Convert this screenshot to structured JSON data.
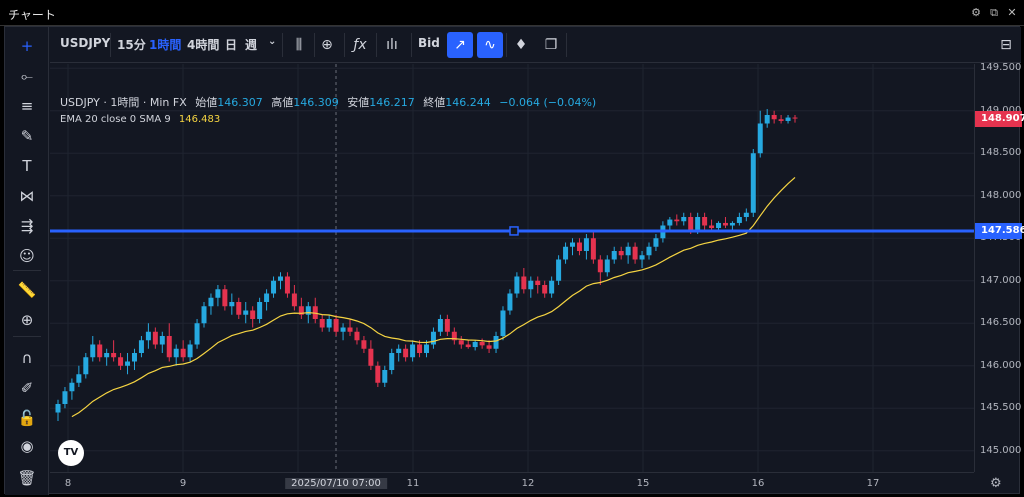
{
  "window": {
    "title": "チャート",
    "icons": [
      "gear-icon",
      "popout-icon",
      "close-icon"
    ]
  },
  "toolbar": {
    "symbol": "USDJPY",
    "timeframes": [
      "15分",
      "1時間",
      "4時間",
      "日",
      "週"
    ],
    "active_timeframe": "1時間",
    "price_type": "Bid",
    "accent": "#2962ff"
  },
  "legend": {
    "symbol": "USDJPY",
    "interval": "1時間",
    "source": "Min FX",
    "open_label": "始値",
    "open": "146.307",
    "high_label": "高値",
    "high": "146.309",
    "low_label": "安値",
    "low": "146.217",
    "close_label": "終値",
    "close": "146.244",
    "change": "−0.064 (−0.04%)",
    "ema_label": "EMA 20 close 0 SMA 9",
    "ema_value": "146.483"
  },
  "colors": {
    "up": "#26a9e0",
    "down": "#e5334f",
    "ema": "#f5d442",
    "hline": "#2962ff",
    "bg": "#131722"
  },
  "crosshair_label": "2025/07/10   07:00",
  "chart_data": {
    "type": "candlestick",
    "title": "",
    "series_name": "USDJPY",
    "ylim": [
      144.75,
      149.55
    ],
    "y_ticks": [
      145.0,
      145.5,
      146.0,
      146.5,
      147.0,
      147.5,
      148.0,
      148.5,
      149.0,
      149.5
    ],
    "y_tick_labels": [
      "145.000",
      "145.500",
      "146.000",
      "146.500",
      "147.000",
      "147.500",
      "148.000",
      "148.500",
      "149.000",
      "149.500"
    ],
    "x_labels": [
      "8",
      "9",
      "2025/07/10   07:00",
      "11",
      "12",
      "15",
      "16",
      "17"
    ],
    "current_price": "148.907",
    "horizontal_line": {
      "value": 147.586,
      "label": "147.586"
    },
    "ohlc": [
      [
        145.45,
        145.6,
        145.35,
        145.55
      ],
      [
        145.55,
        145.75,
        145.5,
        145.7
      ],
      [
        145.7,
        145.85,
        145.6,
        145.8
      ],
      [
        145.8,
        146.0,
        145.75,
        145.9
      ],
      [
        145.9,
        146.15,
        145.85,
        146.1
      ],
      [
        146.1,
        146.35,
        146.05,
        146.25
      ],
      [
        146.25,
        146.3,
        146.05,
        146.1
      ],
      [
        146.1,
        146.2,
        146.0,
        146.15
      ],
      [
        146.15,
        146.3,
        146.05,
        146.1
      ],
      [
        146.1,
        146.15,
        145.95,
        146.0
      ],
      [
        146.0,
        146.15,
        145.9,
        146.05
      ],
      [
        146.05,
        146.2,
        145.95,
        146.15
      ],
      [
        146.15,
        146.35,
        146.1,
        146.3
      ],
      [
        146.3,
        146.5,
        146.2,
        146.4
      ],
      [
        146.4,
        146.45,
        146.2,
        146.25
      ],
      [
        146.25,
        146.4,
        146.15,
        146.35
      ],
      [
        146.35,
        146.5,
        146.05,
        146.1
      ],
      [
        146.1,
        146.25,
        146.0,
        146.2
      ],
      [
        146.2,
        146.3,
        146.05,
        146.1
      ],
      [
        146.1,
        146.3,
        146.05,
        146.25
      ],
      [
        146.25,
        146.55,
        146.2,
        146.5
      ],
      [
        146.5,
        146.75,
        146.45,
        146.7
      ],
      [
        146.7,
        146.85,
        146.6,
        146.8
      ],
      [
        146.8,
        146.95,
        146.7,
        146.9
      ],
      [
        146.9,
        146.95,
        146.65,
        146.7
      ],
      [
        146.7,
        146.85,
        146.6,
        146.75
      ],
      [
        146.75,
        146.8,
        146.55,
        146.6
      ],
      [
        146.6,
        146.75,
        146.5,
        146.65
      ],
      [
        146.65,
        146.7,
        146.45,
        146.55
      ],
      [
        146.55,
        146.8,
        146.5,
        146.75
      ],
      [
        146.75,
        146.9,
        146.65,
        146.85
      ],
      [
        146.85,
        147.05,
        146.8,
        147.0
      ],
      [
        147.0,
        147.1,
        146.9,
        147.05
      ],
      [
        147.05,
        147.1,
        146.8,
        146.85
      ],
      [
        146.85,
        146.95,
        146.65,
        146.7
      ],
      [
        146.7,
        146.8,
        146.55,
        146.6
      ],
      [
        146.6,
        146.75,
        146.5,
        146.7
      ],
      [
        146.7,
        146.8,
        146.5,
        146.55
      ],
      [
        146.55,
        146.6,
        146.4,
        146.45
      ],
      [
        146.45,
        146.6,
        146.4,
        146.55
      ],
      [
        146.55,
        146.6,
        146.35,
        146.4
      ],
      [
        146.4,
        146.5,
        146.3,
        146.45
      ],
      [
        146.45,
        146.55,
        146.35,
        146.4
      ],
      [
        146.4,
        146.45,
        146.25,
        146.3
      ],
      [
        146.3,
        146.35,
        146.15,
        146.2
      ],
      [
        146.2,
        146.3,
        145.95,
        146.0
      ],
      [
        146.0,
        146.05,
        145.75,
        145.8
      ],
      [
        145.8,
        146.0,
        145.75,
        145.95
      ],
      [
        145.95,
        146.2,
        145.9,
        146.15
      ],
      [
        146.15,
        146.25,
        146.05,
        146.2
      ],
      [
        146.2,
        146.25,
        146.05,
        146.1
      ],
      [
        146.1,
        146.3,
        146.05,
        146.25
      ],
      [
        146.25,
        146.3,
        146.1,
        146.15
      ],
      [
        146.15,
        146.3,
        146.1,
        146.25
      ],
      [
        146.25,
        146.45,
        146.2,
        146.4
      ],
      [
        146.4,
        146.6,
        146.35,
        146.55
      ],
      [
        146.55,
        146.6,
        146.35,
        146.4
      ],
      [
        146.4,
        146.45,
        146.25,
        146.3
      ],
      [
        146.3,
        146.35,
        146.2,
        146.25
      ],
      [
        146.25,
        146.3,
        146.2,
        146.22
      ],
      [
        146.22,
        146.3,
        146.18,
        146.28
      ],
      [
        146.28,
        146.32,
        146.2,
        146.24
      ],
      [
        146.24,
        146.3,
        146.15,
        146.2
      ],
      [
        146.2,
        146.4,
        146.15,
        146.35
      ],
      [
        146.35,
        146.7,
        146.3,
        146.65
      ],
      [
        146.65,
        146.9,
        146.6,
        146.85
      ],
      [
        146.85,
        147.1,
        146.8,
        147.05
      ],
      [
        147.05,
        147.15,
        146.85,
        146.9
      ],
      [
        146.9,
        147.05,
        146.8,
        147.0
      ],
      [
        147.0,
        147.05,
        146.85,
        146.95
      ],
      [
        146.95,
        147.0,
        146.8,
        146.85
      ],
      [
        146.85,
        147.05,
        146.8,
        147.0
      ],
      [
        147.0,
        147.3,
        146.95,
        147.25
      ],
      [
        147.25,
        147.45,
        147.2,
        147.4
      ],
      [
        147.4,
        147.5,
        147.3,
        147.45
      ],
      [
        147.45,
        147.5,
        147.3,
        147.35
      ],
      [
        147.35,
        147.55,
        147.25,
        147.5
      ],
      [
        147.5,
        147.6,
        147.2,
        147.25
      ],
      [
        147.25,
        147.3,
        146.95,
        147.1
      ],
      [
        147.1,
        147.3,
        147.05,
        147.25
      ],
      [
        147.25,
        147.4,
        147.2,
        147.35
      ],
      [
        147.35,
        147.4,
        147.25,
        147.3
      ],
      [
        147.3,
        147.45,
        147.2,
        147.4
      ],
      [
        147.4,
        147.45,
        147.2,
        147.25
      ],
      [
        147.25,
        147.35,
        147.15,
        147.3
      ],
      [
        147.3,
        147.45,
        147.25,
        147.4
      ],
      [
        147.4,
        147.55,
        147.35,
        147.5
      ],
      [
        147.5,
        147.7,
        147.45,
        147.65
      ],
      [
        147.65,
        147.75,
        147.6,
        147.72
      ],
      [
        147.72,
        147.78,
        147.65,
        147.7
      ],
      [
        147.7,
        147.8,
        147.65,
        147.75
      ],
      [
        147.75,
        147.8,
        147.55,
        147.6
      ],
      [
        147.6,
        147.8,
        147.55,
        147.75
      ],
      [
        147.75,
        147.8,
        147.6,
        147.65
      ],
      [
        147.65,
        147.72,
        147.58,
        147.62
      ],
      [
        147.62,
        147.7,
        147.58,
        147.68
      ],
      [
        147.68,
        147.75,
        147.62,
        147.65
      ],
      [
        147.65,
        147.7,
        147.6,
        147.68
      ],
      [
        147.68,
        147.8,
        147.65,
        147.75
      ],
      [
        147.75,
        147.85,
        147.7,
        147.8
      ],
      [
        147.8,
        148.55,
        147.75,
        148.5
      ],
      [
        148.5,
        149.0,
        148.45,
        148.85
      ],
      [
        148.85,
        149.02,
        148.8,
        148.95
      ],
      [
        148.95,
        149.0,
        148.85,
        148.9
      ],
      [
        148.9,
        148.95,
        148.85,
        148.88
      ],
      [
        148.88,
        148.95,
        148.85,
        148.92
      ],
      [
        148.92,
        148.95,
        148.86,
        148.91
      ]
    ],
    "ema_legend_value": 146.483
  }
}
